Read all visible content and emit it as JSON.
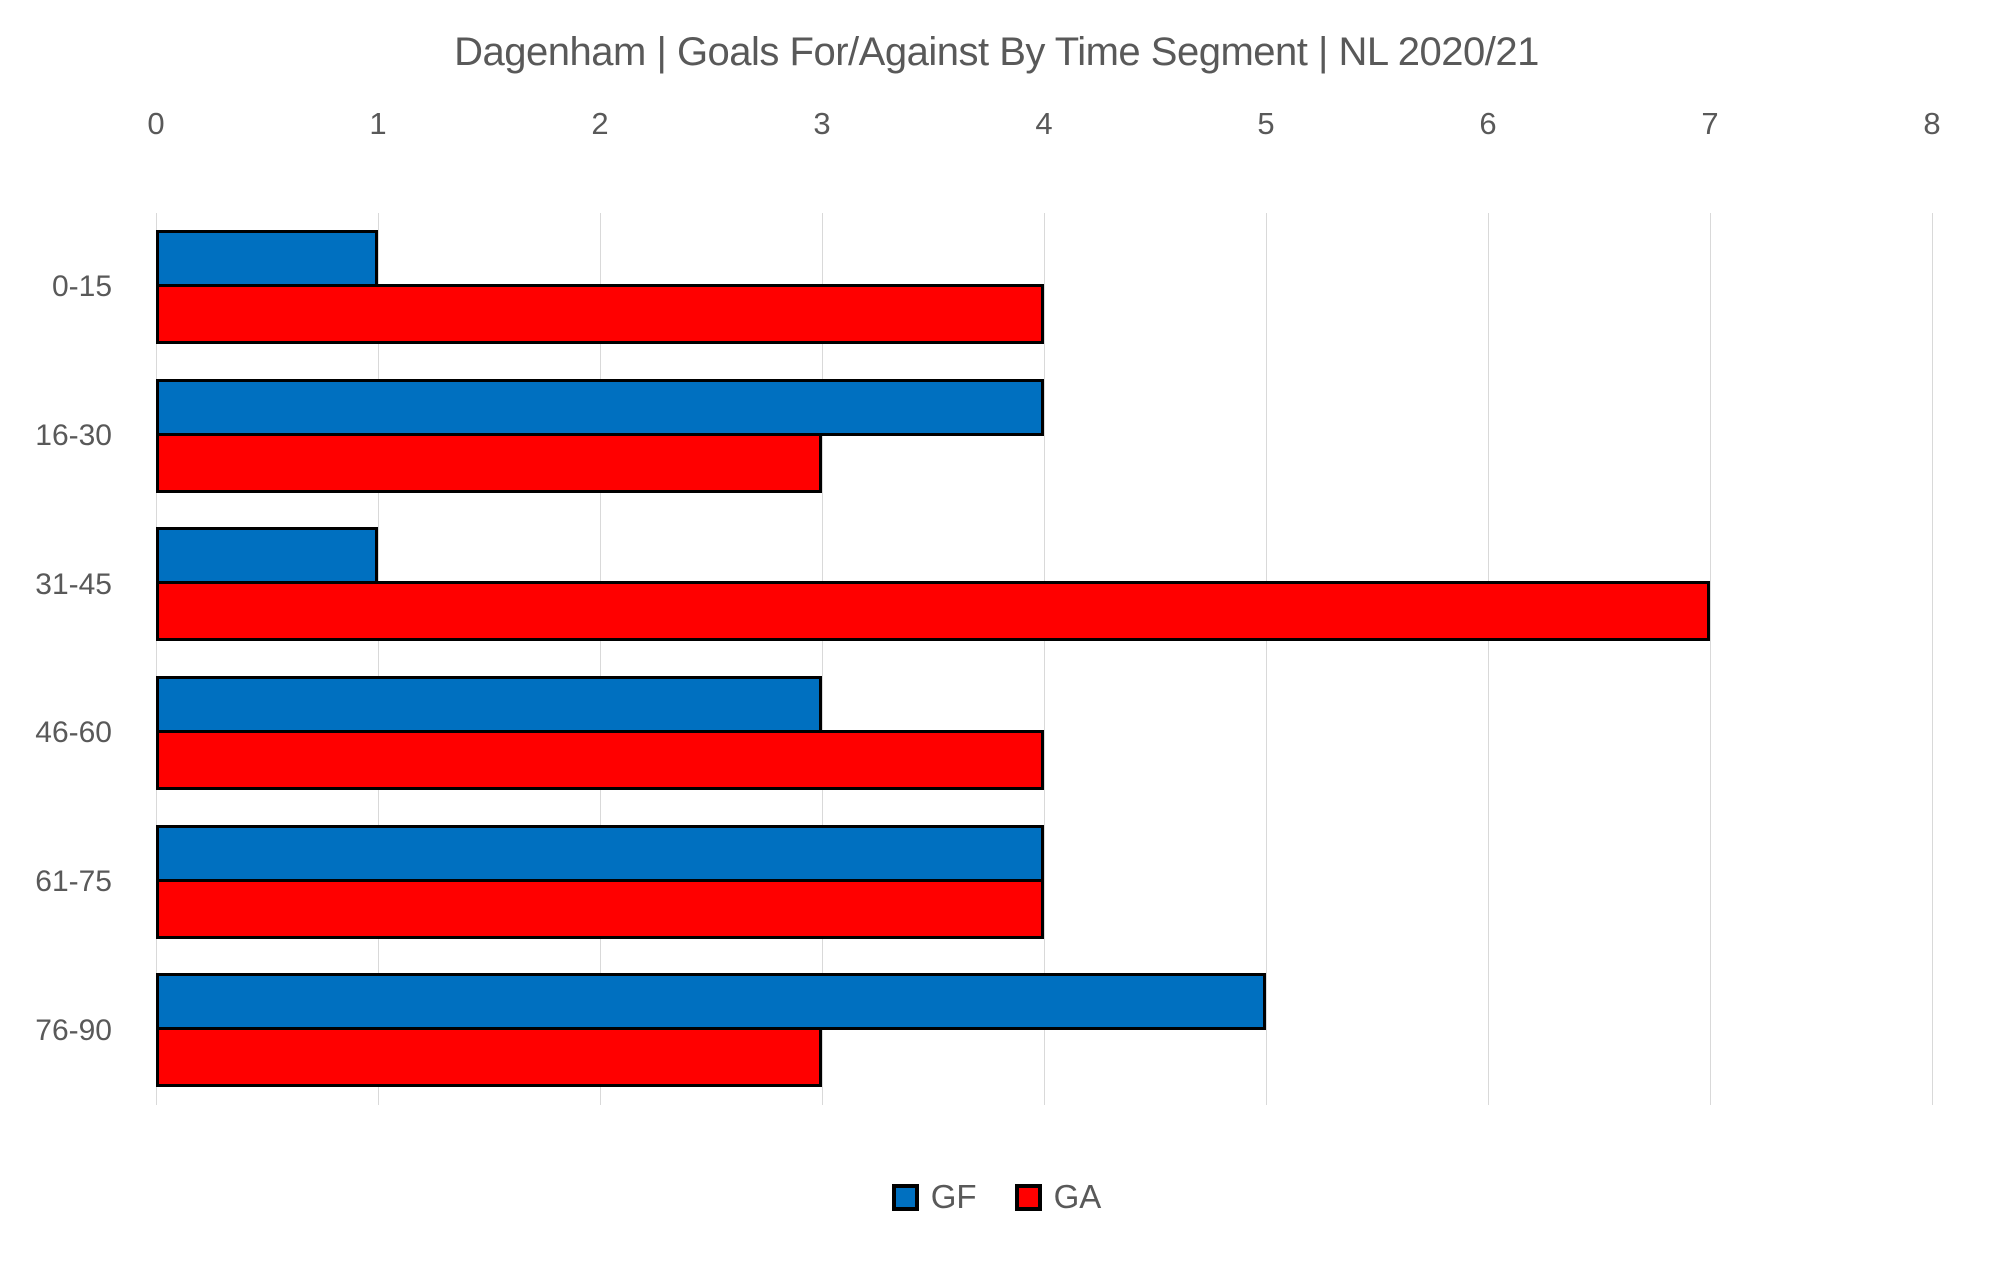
{
  "title": "Dagenham | Goals For/Against By Time Segment | NL 2020/21",
  "chart_data": {
    "type": "bar",
    "orientation": "horizontal",
    "title": "Dagenham | Goals For/Against By Time Segment | NL 2020/21",
    "categories": [
      "0-15",
      "16-30",
      "31-45",
      "46-60",
      "61-75",
      "76-90"
    ],
    "series": [
      {
        "name": "GF",
        "color": "#0070C0",
        "values": [
          1,
          4,
          1,
          3,
          4,
          5
        ]
      },
      {
        "name": "GA",
        "color": "#FF0000",
        "values": [
          4,
          3,
          7,
          4,
          4,
          3
        ]
      }
    ],
    "xlabel": "",
    "ylabel": "",
    "x_axis": {
      "position": "top",
      "min": 0,
      "max": 8,
      "tick_step": 1,
      "tick_labels": [
        "0",
        "1",
        "2",
        "3",
        "4",
        "5",
        "6",
        "7",
        "8"
      ]
    },
    "grid": true,
    "legend_position": "bottom"
  },
  "colors": {
    "background": "#FFFFFF",
    "text": "#595959",
    "gridline": "#D9D9D9",
    "bar_border": "#000000",
    "gf_fill": "#0070C0",
    "ga_fill": "#FF0000"
  }
}
